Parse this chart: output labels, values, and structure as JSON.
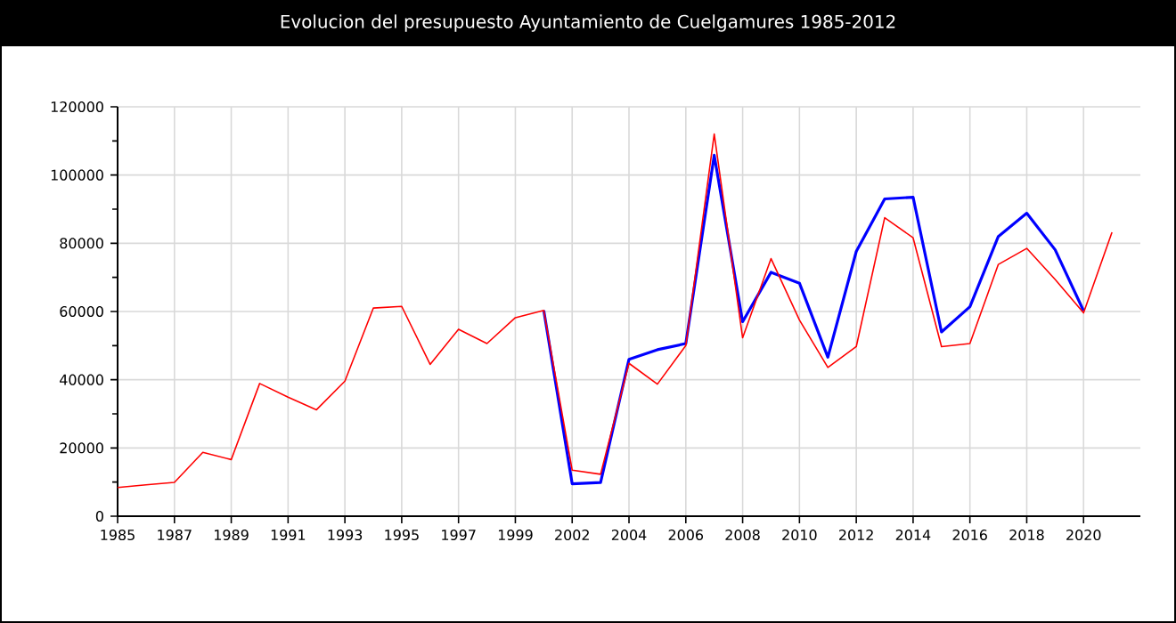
{
  "chart_data": {
    "type": "line",
    "title": "Evolucion del presupuesto Ayuntamiento de Cuelgamures 1985-2012",
    "categories": [
      "1985",
      null,
      "1987",
      null,
      "1989",
      null,
      "1991",
      null,
      "1993",
      null,
      "1995",
      null,
      "1997",
      null,
      "1999",
      null,
      "2002",
      null,
      "2004",
      null,
      "2006",
      null,
      "2008",
      null,
      "2010",
      null,
      "2012",
      null,
      "2014",
      null,
      "2016",
      null,
      "2018",
      null,
      "2020",
      null
    ],
    "series": [
      {
        "color": "#0000ff",
        "values": [
          null,
          null,
          null,
          null,
          null,
          null,
          null,
          null,
          null,
          null,
          null,
          null,
          null,
          null,
          null,
          60300,
          9500,
          9900,
          46000,
          48800,
          50600,
          105800,
          57000,
          71500,
          68300,
          46600,
          77600,
          93000,
          93500,
          54000,
          61400,
          82000,
          88800,
          78100,
          60200,
          null
        ]
      },
      {
        "color": "#ff0000",
        "values": [
          8400,
          9200,
          9900,
          18700,
          16600,
          38900,
          34900,
          31200,
          39600,
          61000,
          61500,
          44500,
          54800,
          50600,
          58200,
          60300,
          13500,
          12300,
          44800,
          38700,
          50000,
          112000,
          52300,
          75500,
          57500,
          43600,
          49700,
          87500,
          81600,
          49700,
          50600,
          73800,
          78500,
          69400,
          59600,
          83200
        ]
      }
    ],
    "ylim": [
      0,
      120000
    ],
    "yticks": [
      0,
      20000,
      40000,
      60000,
      80000,
      100000,
      120000
    ],
    "grid": true
  }
}
